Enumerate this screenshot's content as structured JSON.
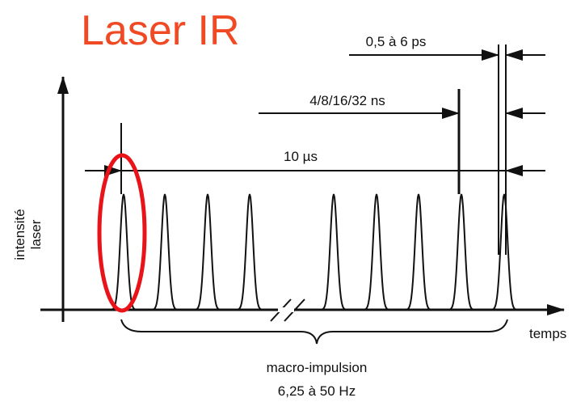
{
  "title": "Laser IR",
  "labels": {
    "pulse_width": "0,5 à 6 ps",
    "pulse_spacing": "4/8/16/32 ns",
    "macro_duration": "10 µs"
  },
  "y_axis": [
    "intensité",
    "laser"
  ],
  "x_axis": "temps",
  "brace": [
    "macro-impulsion",
    "6,25 à 50 Hz"
  ]
}
